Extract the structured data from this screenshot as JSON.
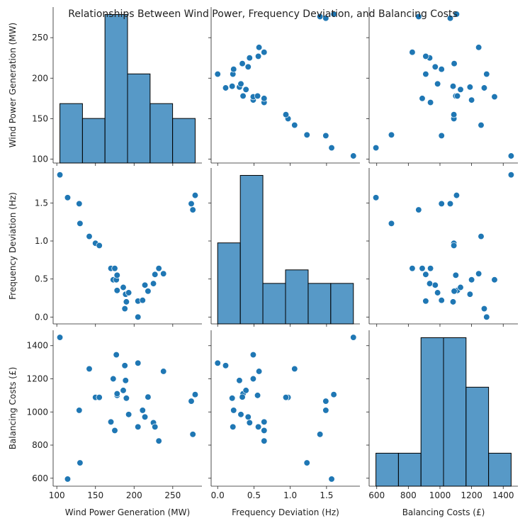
{
  "chart_data": {
    "type": "pairplot",
    "title": "Relationships Between Wind Power, Frequency Deviation, and Balancing Costs",
    "color": "#1f77b4",
    "variables": [
      {
        "name": "Wind Power Generation (MW)",
        "values": [
          104,
          114,
          129,
          130,
          142,
          150,
          155,
          170,
          173,
          175,
          177,
          178,
          178,
          186,
          188,
          189,
          190,
          193,
          205,
          205,
          211,
          214,
          218,
          225,
          227,
          232,
          238,
          274,
          276,
          279
        ],
        "lim": [
          95.25,
          287.75
        ],
        "ticks": [
          100,
          150,
          200,
          250
        ],
        "hist": {
          "bins": [
            104,
            133.2,
            162.3,
            191.5,
            220.7,
            249.8,
            279
          ],
          "counts": [
            4,
            3,
            10,
            6,
            4,
            3
          ]
        }
      },
      {
        "name": "Frequency Deviation (Hz)",
        "values": [
          1.87,
          1.57,
          1.49,
          1.23,
          1.06,
          0.97,
          0.94,
          0.64,
          0.49,
          0.64,
          0.49,
          0.55,
          0.35,
          0.39,
          0.11,
          0.3,
          0.2,
          0.32,
          0.0,
          0.21,
          0.22,
          0.42,
          0.34,
          0.44,
          0.56,
          0.64,
          0.57,
          1.49,
          1.41,
          1.6
        ],
        "lim": [
          -0.09,
          1.96
        ],
        "ticks": [
          {
            "value": 0,
            "label": "0.0"
          },
          0.5,
          {
            "value": 1,
            "label": "1.0"
          },
          1.5
        ],
        "hist": {
          "bins": [
            0,
            0.312,
            0.623,
            0.935,
            1.247,
            1.558,
            1.87
          ],
          "counts": [
            6,
            11,
            3,
            4,
            3,
            3
          ]
        }
      },
      {
        "name": "Balancing Costs (£)",
        "values": [
          1450,
          595,
          1010,
          693,
          1260,
          1088,
          1088,
          940,
          1200,
          888,
          1345,
          1100,
          1110,
          1130,
          1280,
          1190,
          1083,
          985,
          1295,
          910,
          1010,
          970,
          1090,
          935,
          910,
          825,
          1245,
          1065,
          865,
          1105
        ],
        "lim": [
          552,
          1493
        ],
        "ticks": [
          600,
          800,
          1000,
          1200,
          1400
        ],
        "hist": {
          "bins": [
            595,
            737.5,
            880,
            1022.5,
            1165,
            1307.5,
            1450
          ],
          "counts": [
            2,
            2,
            9,
            9,
            6,
            2
          ]
        }
      }
    ]
  }
}
